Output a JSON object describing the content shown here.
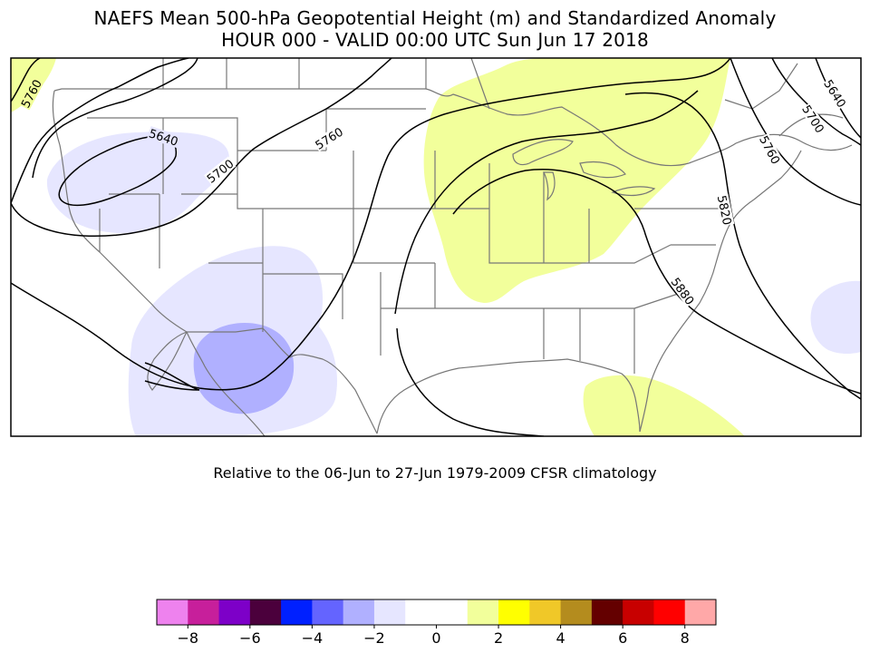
{
  "title_line1": "NAEFS Mean 500-hPa Geopotential Height (m) and Standardized Anomaly",
  "title_line2": "HOUR 000 - VALID 00:00 UTC Sun Jun 17 2018",
  "subtitle": "Relative to the 06-Jun to 27-Jun 1979-2009 CFSR climatology",
  "contour_labels": [
    "5760",
    "5640",
    "5700",
    "5760",
    "5640",
    "5700",
    "5760",
    "5820",
    "5880"
  ],
  "colorbar": {
    "colors": [
      "#ee82ee",
      "#c71f9b",
      "#7d00c8",
      "#4b003c",
      "#0020ff",
      "#6464ff",
      "#b0b0ff",
      "#e6e6ff",
      "#ffffff",
      "#ffffff",
      "#f2ff9b",
      "#ffff00",
      "#f0c828",
      "#b48c1e",
      "#640000",
      "#c80000",
      "#ff0000",
      "#ffa8a8"
    ],
    "tick_labels": [
      "−8",
      "−6",
      "−4",
      "−2",
      "0",
      "2",
      "4",
      "6",
      "8"
    ]
  }
}
